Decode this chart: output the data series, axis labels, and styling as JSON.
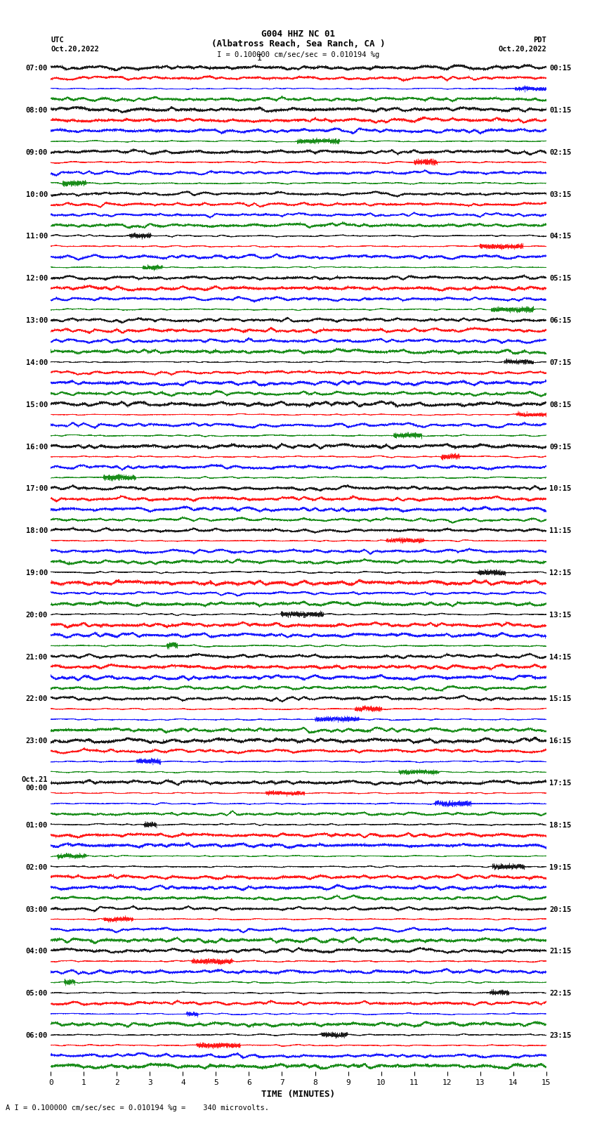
{
  "title_line1": "G004 HHZ NC 01",
  "title_line2": "(Albatross Reach, Sea Ranch, CA )",
  "scale_text": "I = 0.100000 cm/sec/sec = 0.010194 %g",
  "bottom_text": "A I = 0.100000 cm/sec/sec = 0.010194 %g =    340 microvolts.",
  "utc_label": "UTC",
  "pdt_label": "PDT",
  "date_left": "Oct.20,2022",
  "date_right": "Oct.20,2022",
  "xlabel": "TIME (MINUTES)",
  "left_times": [
    "07:00",
    "08:00",
    "09:00",
    "10:00",
    "11:00",
    "12:00",
    "13:00",
    "14:00",
    "15:00",
    "16:00",
    "17:00",
    "18:00",
    "19:00",
    "20:00",
    "21:00",
    "22:00",
    "23:00",
    "Oct.21\n00:00",
    "01:00",
    "02:00",
    "03:00",
    "04:00",
    "05:00",
    "06:00"
  ],
  "right_times": [
    "00:15",
    "01:15",
    "02:15",
    "03:15",
    "04:15",
    "05:15",
    "06:15",
    "07:15",
    "08:15",
    "09:15",
    "10:15",
    "11:15",
    "12:15",
    "13:15",
    "14:15",
    "15:15",
    "16:15",
    "17:15",
    "18:15",
    "19:15",
    "20:15",
    "21:15",
    "22:15",
    "23:15"
  ],
  "n_rows": 24,
  "traces_per_row": 4,
  "colors": [
    "black",
    "red",
    "blue",
    "green"
  ],
  "x_ticks": [
    0,
    1,
    2,
    3,
    4,
    5,
    6,
    7,
    8,
    9,
    10,
    11,
    12,
    13,
    14,
    15
  ],
  "fig_width": 8.5,
  "fig_height": 16.13,
  "bg_color": "white",
  "trace_amplitude": 0.35,
  "noise_seed": 42
}
